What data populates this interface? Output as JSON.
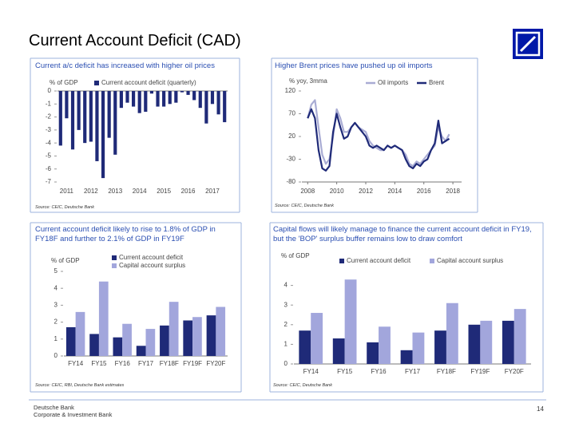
{
  "title": "Current Account Deficit (CAD)",
  "footer": {
    "company": "Deutsche Bank",
    "division": "Corporate & Investment Bank"
  },
  "page_number": "14",
  "chart_data": [
    {
      "type": "bar",
      "title": "Current a/c deficit has increased with higher oil prices",
      "ylabel": "% of GDP",
      "source": "Source: CEIC, Deutsche Bank",
      "categories": [
        "2011",
        null,
        null,
        null,
        "2012",
        null,
        null,
        null,
        "2013",
        null,
        null,
        null,
        "2014",
        null,
        null,
        null,
        "2015",
        null,
        null,
        null,
        "2016",
        null,
        null,
        null,
        "2017",
        null,
        null,
        null
      ],
      "series": [
        {
          "name": "Current account deficit (quarterly)",
          "color": "#1f2a78",
          "values": [
            -4.2,
            -2.1,
            -4.5,
            -3.0,
            -4.0,
            -3.9,
            -5.4,
            -6.7,
            -3.6,
            -4.9,
            -1.3,
            -0.9,
            -1.2,
            -1.7,
            -1.6,
            -0.2,
            -1.2,
            -1.2,
            -1.0,
            -0.9,
            -0.1,
            -0.3,
            -0.7,
            -1.3,
            -2.5,
            -1.0,
            -1.8,
            -2.4
          ]
        }
      ],
      "ylim": [
        -7,
        0
      ],
      "yticks": [
        0,
        -1,
        -2,
        -3,
        -4,
        -5,
        -6,
        -7
      ]
    },
    {
      "type": "line",
      "title": "Higher Brent prices have pushed up oil imports",
      "ylabel": "% yoy, 3mma",
      "source": "Source: CEIC, Deutsche Bank",
      "x": [
        2008,
        2008.25,
        2008.5,
        2008.75,
        2009,
        2009.25,
        2009.5,
        2009.75,
        2010,
        2010.25,
        2010.5,
        2010.75,
        2011,
        2011.25,
        2011.5,
        2011.75,
        2012,
        2012.25,
        2012.5,
        2012.75,
        2013,
        2013.25,
        2013.5,
        2013.75,
        2014,
        2014.25,
        2014.5,
        2014.75,
        2015,
        2015.25,
        2015.5,
        2015.75,
        2016,
        2016.25,
        2016.5,
        2016.75,
        2017,
        2017.25,
        2017.5,
        2017.75
      ],
      "series": [
        {
          "name": "Oil imports",
          "color": "#a9acd4",
          "values": [
            60,
            90,
            100,
            40,
            -20,
            -40,
            -30,
            20,
            80,
            60,
            30,
            30,
            40,
            50,
            40,
            35,
            30,
            10,
            0,
            -5,
            -10,
            -10,
            0,
            -5,
            0,
            -5,
            -10,
            -20,
            -40,
            -45,
            -35,
            -40,
            -30,
            -20,
            -10,
            0,
            40,
            20,
            10,
            25
          ]
        },
        {
          "name": "Brent",
          "color": "#1f2a78",
          "values": [
            60,
            80,
            60,
            -10,
            -50,
            -55,
            -45,
            30,
            70,
            40,
            15,
            20,
            40,
            50,
            40,
            30,
            20,
            0,
            -5,
            0,
            -5,
            -10,
            0,
            -5,
            0,
            -5,
            -10,
            -30,
            -45,
            -50,
            -40,
            -45,
            -35,
            -30,
            -10,
            5,
            55,
            5,
            10,
            15
          ]
        }
      ],
      "xlim": [
        2007.6,
        2018.6
      ],
      "xticks": [
        2008,
        2010,
        2012,
        2014,
        2016,
        2018
      ],
      "ylim": [
        -80,
        120
      ],
      "yticks": [
        120,
        70,
        20,
        -30,
        -80
      ]
    },
    {
      "type": "bar",
      "title": "Current account deficit likely to rise to 1.8% of GDP in FY18F and further to 2.1% of GDP in FY19F",
      "ylabel": "% of GDP",
      "source": "Source: CEIC, RBI, Deutsche Bank estimates",
      "categories": [
        "FY14",
        "FY15",
        "FY16",
        "FY17",
        "FY18F",
        "FY19F",
        "FY20F"
      ],
      "series": [
        {
          "name": "Current account deficit",
          "color": "#1f2a78",
          "values": [
            1.7,
            1.3,
            1.1,
            0.6,
            1.8,
            2.1,
            2.4
          ]
        },
        {
          "name": "Capital account surplus",
          "color": "#a2a6dc",
          "values": [
            2.6,
            4.4,
            1.9,
            1.6,
            3.2,
            2.3,
            2.9
          ]
        }
      ],
      "ylim": [
        0,
        5
      ],
      "yticks": [
        0,
        1,
        2,
        3,
        4,
        5
      ]
    },
    {
      "type": "bar",
      "title": "Capital flows will likely manage to finance the current account deficit in FY19, but the 'BOP' surplus buffer remains low to draw comfort",
      "ylabel": "% of GDP",
      "source": "Source: CEIC, Deutsche Bank",
      "categories": [
        "FY14",
        "FY15",
        "FY16",
        "FY17",
        "FY18F",
        "FY19F",
        "FY20F"
      ],
      "series": [
        {
          "name": "Current account deficit",
          "color": "#1f2a78",
          "values": [
            1.7,
            1.3,
            1.1,
            0.7,
            1.7,
            2.0,
            2.2
          ]
        },
        {
          "name": "Capital account surplus",
          "color": "#a2a6dc",
          "values": [
            2.6,
            4.3,
            1.9,
            1.6,
            3.1,
            2.2,
            2.8
          ]
        }
      ],
      "ylim": [
        0,
        5
      ],
      "yticks": [
        0,
        1,
        2,
        3,
        4
      ]
    }
  ]
}
